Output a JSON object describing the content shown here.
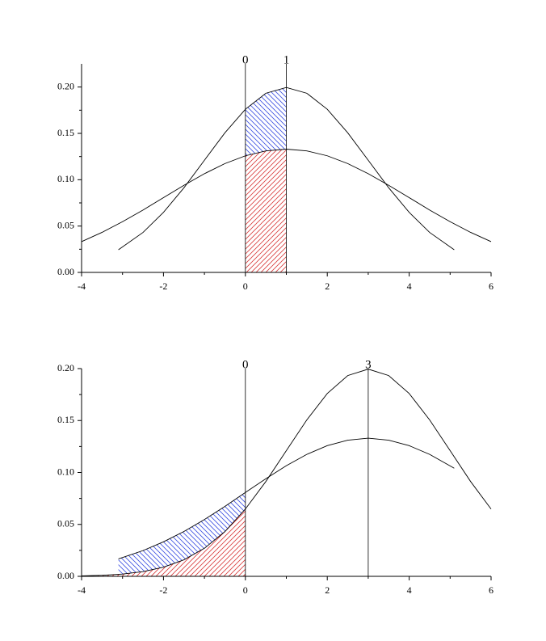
{
  "chart_data": [
    {
      "type": "line",
      "xlim": [
        -4,
        6
      ],
      "ylim": [
        0,
        0.225
      ],
      "xticks": [
        -4,
        -2,
        0,
        2,
        4,
        6
      ],
      "xminorticks": [
        -3,
        -1,
        1,
        3,
        5
      ],
      "yticks": [
        {
          "value": 0,
          "label": "0.00"
        },
        {
          "value": 0.05,
          "label": "0.05"
        },
        {
          "value": 0.1,
          "label": "0.10"
        },
        {
          "value": 0.15,
          "label": "0.15"
        },
        {
          "value": 0.2,
          "label": "0.20"
        }
      ],
      "yminorticks": [
        0.025,
        0.075,
        0.125,
        0.175
      ],
      "vlines": [
        0,
        1
      ],
      "shade_range": [
        0,
        1
      ],
      "hatch_colors": {
        "lower": "#d83a3a",
        "between": "#3a4ee0"
      },
      "series": [
        {
          "color": "#000000",
          "x": [
            -3.1,
            -2.5,
            -2,
            -1.5,
            -1,
            -0.5,
            0,
            0.5,
            1,
            1.5,
            2,
            2.5,
            3,
            3.5,
            4,
            4.5,
            5.1
          ],
          "values": [
            0.0244,
            0.0431,
            0.0648,
            0.0913,
            0.121,
            0.1506,
            0.176,
            0.1933,
            0.1995,
            0.1933,
            0.176,
            0.1506,
            0.121,
            0.0913,
            0.0648,
            0.0431,
            0.0244
          ]
        },
        {
          "color": "#000000",
          "x": [
            -4,
            -3.5,
            -3,
            -2.5,
            -2,
            -1.5,
            -1,
            -0.5,
            0,
            0.5,
            1,
            1.5,
            2,
            2.5,
            3,
            3.5,
            4,
            4.5,
            5,
            5.5,
            6
          ],
          "values": [
            0.0332,
            0.0432,
            0.0547,
            0.0673,
            0.0807,
            0.094,
            0.1065,
            0.1174,
            0.1258,
            0.1311,
            0.133,
            0.1311,
            0.1258,
            0.1174,
            0.1065,
            0.094,
            0.0807,
            0.0673,
            0.0547,
            0.0432,
            0.0332
          ]
        }
      ]
    },
    {
      "type": "line",
      "xlim": [
        -4,
        6
      ],
      "ylim": [
        0,
        0.2
      ],
      "xticks": [
        -4,
        -2,
        0,
        2,
        4,
        6
      ],
      "xminorticks": [
        -3,
        -1,
        1,
        3,
        5
      ],
      "yticks": [
        {
          "value": 0,
          "label": "0.00"
        },
        {
          "value": 0.05,
          "label": "0.05"
        },
        {
          "value": 0.1,
          "label": "0.10"
        },
        {
          "value": 0.15,
          "label": "0.15"
        },
        {
          "value": 0.2,
          "label": "0.20"
        }
      ],
      "yminorticks": [
        0.025,
        0.075,
        0.125,
        0.175
      ],
      "vlines": [
        0,
        3
      ],
      "shade_range": [
        -4,
        0
      ],
      "hatch_colors": {
        "lower": "#d83a3a",
        "between": "#3a4ee0"
      },
      "series": [
        {
          "color": "#000000",
          "x": [
            -4,
            -3.5,
            -3,
            -2.5,
            -2,
            -1.5,
            -1,
            -0.5,
            0,
            0.5,
            1,
            1.5,
            2,
            2.5,
            3,
            3.5,
            4,
            4.5,
            5,
            5.5,
            6
          ],
          "values": [
            0.0004,
            0.001,
            0.0022,
            0.0045,
            0.0088,
            0.0159,
            0.027,
            0.0431,
            0.0648,
            0.0913,
            0.121,
            0.1506,
            0.176,
            0.1933,
            0.1995,
            0.1933,
            0.176,
            0.1506,
            0.121,
            0.0913,
            0.0648
          ]
        },
        {
          "color": "#000000",
          "x": [
            -3.1,
            -2.5,
            -2,
            -1.5,
            -1,
            -0.5,
            0,
            0.5,
            1,
            1.5,
            2,
            2.5,
            3,
            3.5,
            4,
            4.5,
            5.1
          ],
          "values": [
            0.0168,
            0.0248,
            0.0332,
            0.0432,
            0.0547,
            0.0673,
            0.0807,
            0.094,
            0.1065,
            0.1174,
            0.1258,
            0.1311,
            0.133,
            0.1311,
            0.1258,
            0.1174,
            0.1041
          ]
        }
      ]
    }
  ]
}
